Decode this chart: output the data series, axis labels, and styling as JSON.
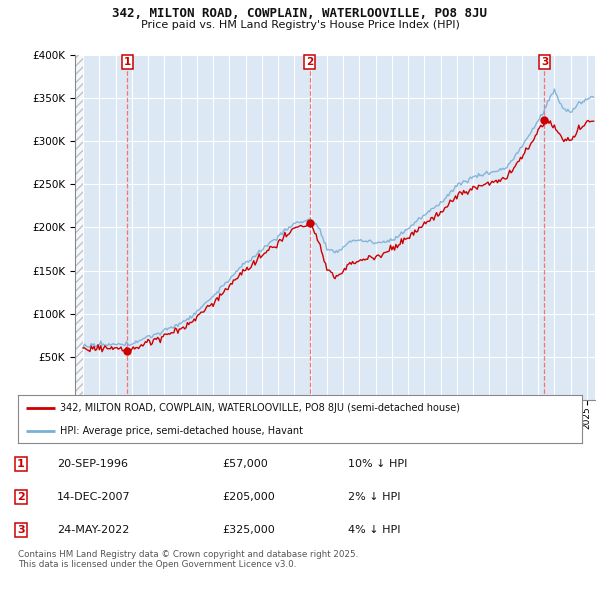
{
  "title_line1": "342, MILTON ROAD, COWPLAIN, WATERLOOVILLE, PO8 8JU",
  "title_line2": "Price paid vs. HM Land Registry's House Price Index (HPI)",
  "legend_label_red": "342, MILTON ROAD, COWPLAIN, WATERLOOVILLE, PO8 8JU (semi-detached house)",
  "legend_label_blue": "HPI: Average price, semi-detached house, Havant",
  "footer": "Contains HM Land Registry data © Crown copyright and database right 2025.\nThis data is licensed under the Open Government Licence v3.0.",
  "transactions": [
    {
      "num": 1,
      "date_label": "20-SEP-1996",
      "price": 57000,
      "hpi_diff": "10% ↓ HPI",
      "x": 1996.72
    },
    {
      "num": 2,
      "date_label": "14-DEC-2007",
      "price": 205000,
      "hpi_diff": "2% ↓ HPI",
      "x": 2007.95
    },
    {
      "num": 3,
      "date_label": "24-MAY-2022",
      "price": 325000,
      "hpi_diff": "4% ↓ HPI",
      "x": 2022.39
    }
  ],
  "ylim": [
    0,
    400000
  ],
  "xlim_start": 1993.5,
  "xlim_end": 2025.5,
  "background_color": "#ffffff",
  "plot_bg_color": "#dce9f5",
  "grid_color": "#ffffff",
  "red_color": "#cc0000",
  "blue_color": "#7bafd4",
  "dashed_color": "#ff5555"
}
